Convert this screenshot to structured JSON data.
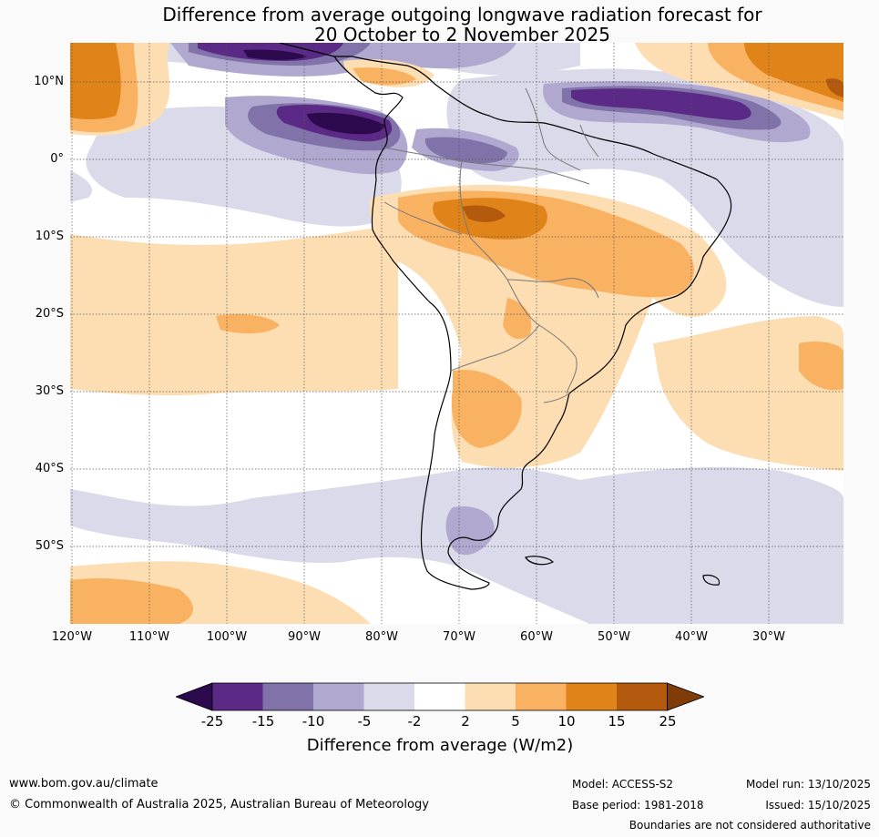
{
  "title": {
    "line1": "Difference from average outgoing longwave radiation forecast for",
    "line2": "20 October to 2 November 2025"
  },
  "map": {
    "latitude_labels": [
      "10°N",
      "0°",
      "10°S",
      "20°S",
      "30°S",
      "40°S",
      "50°S"
    ],
    "longitude_labels": [
      "120°W",
      "110°W",
      "100°W",
      "90°W",
      "80°W",
      "70°W",
      "60°W",
      "50°W",
      "40°W",
      "30°W"
    ]
  },
  "legend": {
    "tick_labels": [
      "-25",
      "-15",
      "-10",
      "-5",
      "-2",
      "2",
      "5",
      "10",
      "15",
      "25"
    ],
    "title": "Difference from average (W/m2)",
    "colors": {
      "below_-25": "#2d0a4e",
      "-25_to_-15": "#5a2a86",
      "-15_to_-10": "#8272aa",
      "-10_to_-5": "#b1a8d0",
      "-5_to_-2": "#dadaea",
      "-2_to_2": "#ffffff",
      "2_to_5": "#fddeb3",
      "5_to_10": "#f9b262",
      "10_to_15": "#e08419",
      "15_to_25": "#b45a0e",
      "above_25": "#7f3b08"
    }
  },
  "footer": {
    "website": "www.bom.gov.au/climate",
    "copyright": "© Commonwealth of Australia 2025, Australian Bureau of Meteorology",
    "model": "Model: ACCESS-S2",
    "base_period": "Base period: 1981-2018",
    "model_run": "Model run: 13/10/2025",
    "issued": "Issued: 15/10/2025",
    "disclaimer": "Boundaries are not considered authoritative"
  }
}
